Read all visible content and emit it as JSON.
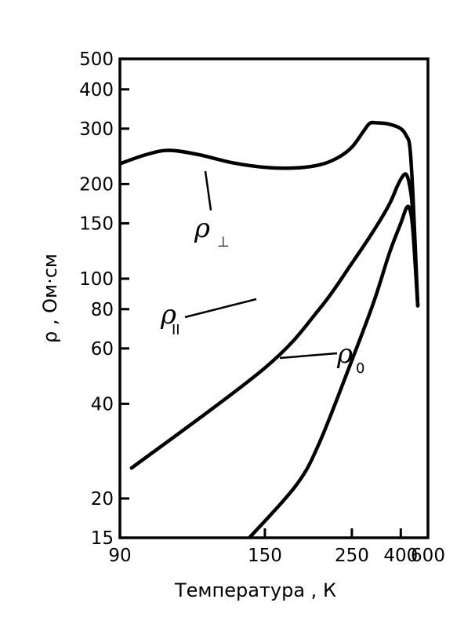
{
  "chart_data": {
    "type": "line",
    "title": "",
    "xlabel": "Температура , К",
    "ylabel": "ρ ,  Ом·см",
    "xscale": "reciprocal",
    "yscale": "log",
    "xlim": [
      600,
      90
    ],
    "ylim": [
      15,
      500
    ],
    "x_ticks": [
      90,
      150,
      250,
      400,
      600
    ],
    "x_tick_labels": [
      "90",
      "150",
      "250",
      "400",
      "600"
    ],
    "y_ticks": [
      15,
      20,
      40,
      60,
      80,
      100,
      150,
      200,
      300,
      400,
      500
    ],
    "y_tick_labels": [
      "15",
      "20",
      "40",
      "60",
      "80",
      "100",
      "150",
      "200",
      "300",
      "400",
      "500"
    ],
    "series": [
      {
        "name": "ρ⊥",
        "label_main": "ρ",
        "label_sub": "⊥",
        "points": [
          [
            90,
            232
          ],
          [
            97,
            248
          ],
          [
            104,
            256
          ],
          [
            115,
            248
          ],
          [
            130,
            234
          ],
          [
            150,
            226
          ],
          [
            175,
            225
          ],
          [
            200,
            230
          ],
          [
            225,
            242
          ],
          [
            250,
            262
          ],
          [
            275,
            295
          ],
          [
            290,
            312
          ],
          [
            310,
            313
          ],
          [
            350,
            310
          ],
          [
            400,
            300
          ],
          [
            430,
            284
          ],
          [
            450,
            262
          ],
          [
            470,
            185
          ],
          [
            505,
            82
          ]
        ]
      },
      {
        "name": "ρ∥",
        "label_main": "ρ",
        "label_sub": "II",
        "points": [
          [
            93,
            25
          ],
          [
            150,
            52
          ],
          [
            200,
            80
          ],
          [
            250,
            112
          ],
          [
            300,
            142
          ],
          [
            350,
            172
          ],
          [
            385,
            198
          ],
          [
            410,
            212
          ],
          [
            430,
            214
          ],
          [
            450,
            196
          ],
          [
            470,
            160
          ],
          [
            505,
            82
          ]
        ]
      },
      {
        "name": "ρ0",
        "label_main": "ρ",
        "label_sub": "0",
        "points": [
          [
            140,
            15
          ],
          [
            175,
            22
          ],
          [
            200,
            30
          ],
          [
            250,
            55
          ],
          [
            300,
            84
          ],
          [
            350,
            120
          ],
          [
            400,
            150
          ],
          [
            430,
            168
          ],
          [
            450,
            166
          ],
          [
            470,
            142
          ],
          [
            505,
            82
          ]
        ]
      }
    ],
    "legend": "none",
    "grid": false
  }
}
